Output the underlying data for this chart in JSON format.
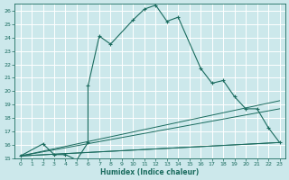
{
  "xlabel": "Humidex (Indice chaleur)",
  "background_color": "#cce8eb",
  "grid_color": "#ffffff",
  "line_color": "#1a6b5e",
  "xlim": [
    -0.5,
    23.5
  ],
  "ylim": [
    15,
    26.5
  ],
  "xticks": [
    0,
    1,
    2,
    3,
    4,
    5,
    6,
    7,
    8,
    9,
    10,
    11,
    12,
    13,
    14,
    15,
    16,
    17,
    18,
    19,
    20,
    21,
    22,
    23
  ],
  "yticks": [
    15,
    16,
    17,
    18,
    19,
    20,
    21,
    22,
    23,
    24,
    25,
    26
  ],
  "main_series": {
    "x": [
      0,
      2,
      3,
      4,
      5,
      5,
      6,
      6,
      7,
      8,
      10,
      11,
      12,
      13,
      14,
      16,
      17,
      18,
      19,
      20,
      21,
      22,
      23
    ],
    "y": [
      15.2,
      16.1,
      15.3,
      15.3,
      14.9,
      14.9,
      16.2,
      20.4,
      24.1,
      23.5,
      25.3,
      26.1,
      26.4,
      25.2,
      25.5,
      21.7,
      20.6,
      20.8,
      19.6,
      18.7,
      18.7,
      17.3,
      16.2
    ]
  },
  "trend_lines": [
    {
      "x": [
        0,
        23
      ],
      "y": [
        15.2,
        16.2
      ]
    },
    {
      "x": [
        0,
        23
      ],
      "y": [
        15.2,
        16.2
      ]
    },
    {
      "x": [
        0,
        23
      ],
      "y": [
        15.2,
        18.7
      ]
    },
    {
      "x": [
        0,
        23
      ],
      "y": [
        15.2,
        19.3
      ]
    }
  ]
}
